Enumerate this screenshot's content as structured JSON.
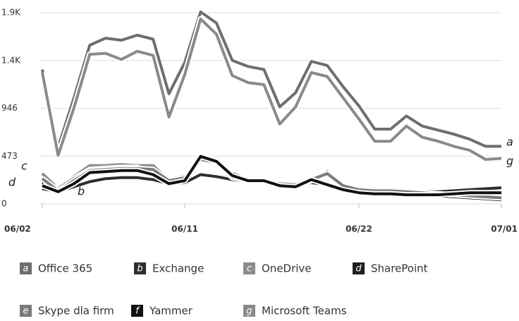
{
  "chart_data": {
    "type": "line",
    "categories": [
      "06/02",
      null,
      null,
      null,
      null,
      null,
      null,
      null,
      null,
      "06/11",
      null,
      null,
      null,
      null,
      null,
      null,
      null,
      null,
      null,
      null,
      "06/22",
      null,
      null,
      null,
      null,
      null,
      null,
      null,
      null,
      "07/01"
    ],
    "ylim": [
      0,
      1892
    ],
    "yticks": [
      0,
      473,
      946,
      {
        "value": 1419,
        "label": "1.4K"
      },
      {
        "value": 1892,
        "label": "1.9K"
      }
    ],
    "grid": true,
    "legend": "bottom",
    "series": [
      {
        "name": "Office 365",
        "marker": "a",
        "color": "#6e6e6e",
        "values": [
          1330,
          560,
          1050,
          1570,
          1640,
          1620,
          1670,
          1630,
          1090,
          1400,
          1900,
          1790,
          1420,
          1360,
          1330,
          960,
          1100,
          1410,
          1370,
          1160,
          970,
          740,
          740,
          870,
          770,
          730,
          690,
          640,
          570,
          570
        ]
      },
      {
        "name": "Exchange",
        "marker": "b",
        "color": "#2e2e2e",
        "values": [
          150,
          120,
          170,
          220,
          250,
          260,
          260,
          240,
          200,
          210,
          290,
          270,
          240,
          230,
          220,
          190,
          190,
          210,
          190,
          160,
          140,
          130,
          130,
          120,
          120,
          120,
          130,
          140,
          150,
          160
        ]
      },
      {
        "name": "OneDrive",
        "marker": "c",
        "color": "#8c8c8c",
        "values": [
          300,
          150,
          270,
          380,
          380,
          390,
          380,
          380,
          230,
          280,
          460,
          430,
          270,
          240,
          230,
          200,
          180,
          230,
          320,
          170,
          130,
          120,
          120,
          110,
          100,
          90,
          80,
          70,
          60,
          50
        ]
      },
      {
        "name": "SharePoint",
        "marker": "d",
        "color": "#1e1e1e",
        "values": [
          210,
          150,
          250,
          340,
          350,
          360,
          360,
          300,
          210,
          250,
          480,
          430,
          300,
          240,
          240,
          190,
          180,
          250,
          200,
          150,
          120,
          110,
          110,
          100,
          90,
          80,
          70,
          60,
          50,
          40
        ]
      },
      {
        "name": "Skype dla firm",
        "marker": "e",
        "color": "#7a7a7a",
        "values": [
          250,
          130,
          230,
          330,
          340,
          350,
          350,
          340,
          230,
          260,
          440,
          410,
          260,
          240,
          230,
          200,
          190,
          240,
          300,
          180,
          140,
          130,
          130,
          120,
          110,
          100,
          90,
          80,
          70,
          60
        ]
      },
      {
        "name": "Yammer",
        "marker": "f",
        "color": "#111111",
        "values": [
          180,
          120,
          200,
          310,
          320,
          330,
          330,
          290,
          200,
          230,
          470,
          420,
          280,
          230,
          230,
          180,
          170,
          240,
          190,
          140,
          110,
          100,
          100,
          90,
          90,
          90,
          100,
          110,
          110,
          110
        ]
      },
      {
        "name": "Microsoft Teams",
        "marker": "g",
        "color": "#8a8a8a",
        "values": [
          1300,
          480,
          950,
          1480,
          1490,
          1430,
          1510,
          1470,
          860,
          1280,
          1830,
          1680,
          1270,
          1200,
          1180,
          790,
          960,
          1300,
          1260,
          1050,
          840,
          620,
          620,
          770,
          660,
          620,
          570,
          530,
          440,
          450
        ]
      }
    ]
  }
}
